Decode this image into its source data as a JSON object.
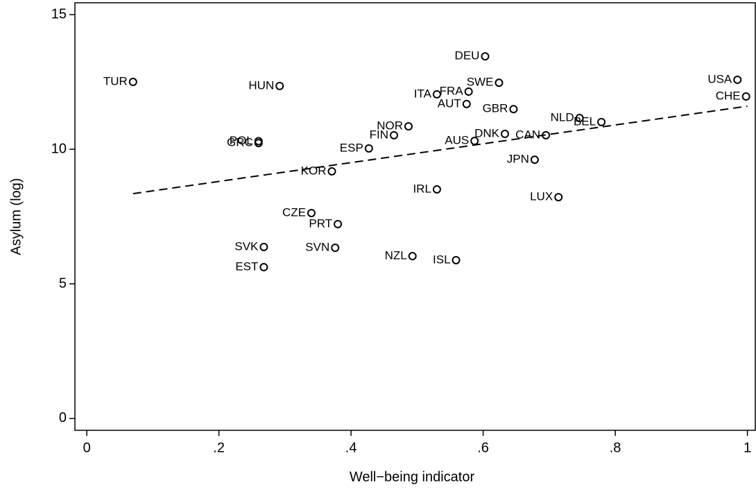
{
  "chart_data": {
    "type": "scatter",
    "x_label": "Well−being indicator",
    "y_label": "Asylum (log)",
    "xlim": [
      -0.018,
      1.012
    ],
    "ylim": [
      -0.44,
      15.44
    ],
    "xticks": [
      0,
      {
        "value": 0.2,
        "label": ".2"
      },
      {
        "value": 0.4,
        "label": ".4"
      },
      {
        "value": 0.6,
        "label": ".6"
      },
      {
        "value": 0.8,
        "label": ".8"
      },
      1
    ],
    "yticks": [
      0,
      5,
      10,
      15
    ],
    "series": [
      {
        "color": "#000000",
        "labels": [
          "TUR",
          "HUN",
          "DEU",
          "SWE",
          "FRA",
          "ITA",
          "AUT",
          "GBR",
          "USA",
          "CHE",
          "NLD",
          "BEL",
          "NOR",
          "FIN",
          "DNK",
          "CAN",
          "AUS",
          "ESP",
          "POL",
          "GRC",
          "KOR",
          "JPN",
          "IRL",
          "LUX",
          "CZE",
          "PRT",
          "SVK",
          "SVN",
          "NZL",
          "ISL",
          "EST"
        ],
        "x": [
          0.07,
          0.292,
          0.603,
          0.624,
          0.578,
          0.53,
          0.575,
          0.646,
          0.985,
          0.998,
          0.746,
          0.779,
          0.487,
          0.465,
          0.633,
          0.695,
          0.587,
          0.427,
          0.26,
          0.26,
          0.371,
          0.678,
          0.53,
          0.714,
          0.34,
          0.38,
          0.268,
          0.376,
          0.493,
          0.559,
          0.268
        ],
        "values": [
          12.5,
          12.35,
          13.45,
          12.47,
          12.14,
          12.04,
          11.68,
          11.49,
          12.58,
          11.96,
          11.16,
          11.01,
          10.85,
          10.52,
          10.57,
          10.52,
          10.31,
          10.03,
          10.3,
          10.23,
          9.18,
          9.61,
          8.51,
          8.22,
          7.63,
          7.22,
          6.37,
          6.34,
          6.03,
          5.88,
          5.62
        ]
      }
    ],
    "fit": {
      "color": "#000000",
      "dashed": true,
      "x": [
        0.07,
        1.0
      ],
      "values": [
        8.35,
        11.6
      ]
    }
  }
}
